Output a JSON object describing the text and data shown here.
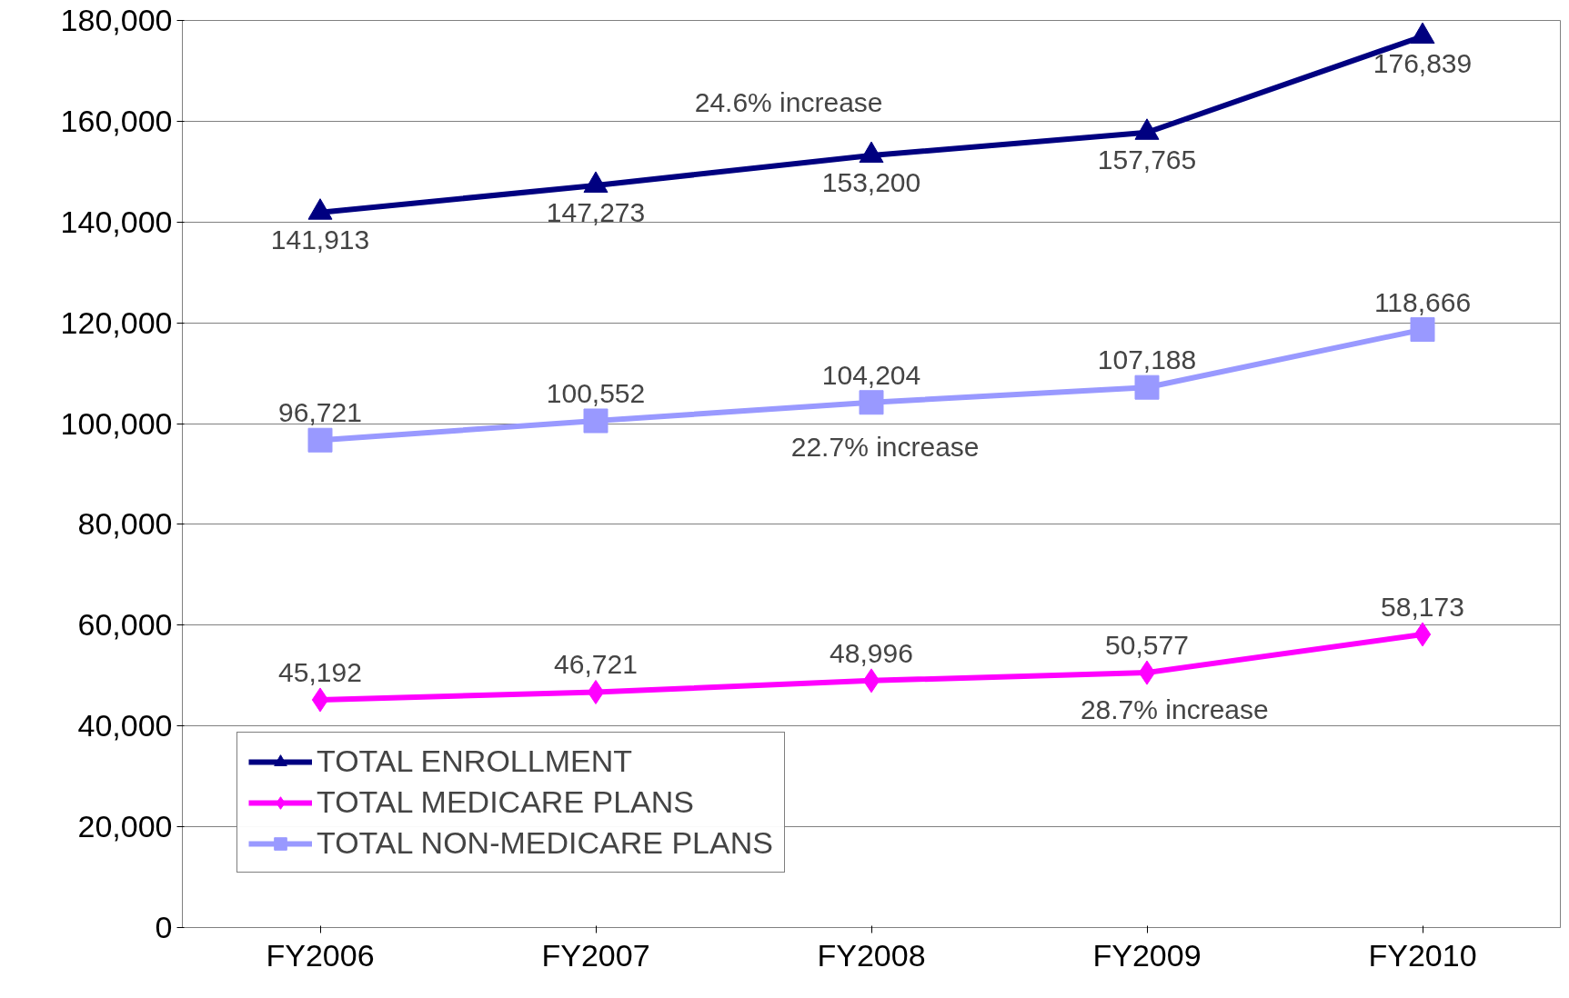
{
  "chart_data": {
    "type": "line",
    "categories": [
      "FY2006",
      "FY2007",
      "FY2008",
      "FY2009",
      "FY2010"
    ],
    "series": [
      {
        "name": "TOTAL ENROLLMENT",
        "color": "#000080",
        "marker": "triangle",
        "values": [
          141913,
          147273,
          153200,
          157765,
          176839
        ],
        "value_labels": [
          "141,913",
          "147,273",
          "153,200",
          "157,765",
          "176,839"
        ]
      },
      {
        "name": "TOTAL MEDICARE PLANS",
        "color": "#ff00ff",
        "marker": "diamond",
        "values": [
          45192,
          46721,
          48996,
          50577,
          58173
        ],
        "value_labels": [
          "45,192",
          "46,721",
          "48,996",
          "50,577",
          "58,173"
        ]
      },
      {
        "name": "TOTAL NON-MEDICARE PLANS",
        "color": "#9999ff",
        "marker": "square",
        "values": [
          96721,
          100552,
          104204,
          107188,
          118666
        ],
        "value_labels": [
          "96,721",
          "100,552",
          "104,204",
          "107,188",
          "118,666"
        ]
      }
    ],
    "ylim": [
      0,
      180000
    ],
    "yticks": [
      {
        "value": 0,
        "label": "0"
      },
      {
        "value": 20000,
        "label": "20,000"
      },
      {
        "value": 40000,
        "label": "40,000"
      },
      {
        "value": 60000,
        "label": "60,000"
      },
      {
        "value": 80000,
        "label": "80,000"
      },
      {
        "value": 100000,
        "label": "100,000"
      },
      {
        "value": 120000,
        "label": "120,000"
      },
      {
        "value": 140000,
        "label": "140,000"
      },
      {
        "value": 160000,
        "label": "160,000"
      },
      {
        "value": 180000,
        "label": "180,000"
      }
    ],
    "annotations": [
      "24.6% increase",
      "22.7% increase",
      "28.7% increase"
    ],
    "grid": "y",
    "legend": "bottom left",
    "line_style": "solid"
  }
}
